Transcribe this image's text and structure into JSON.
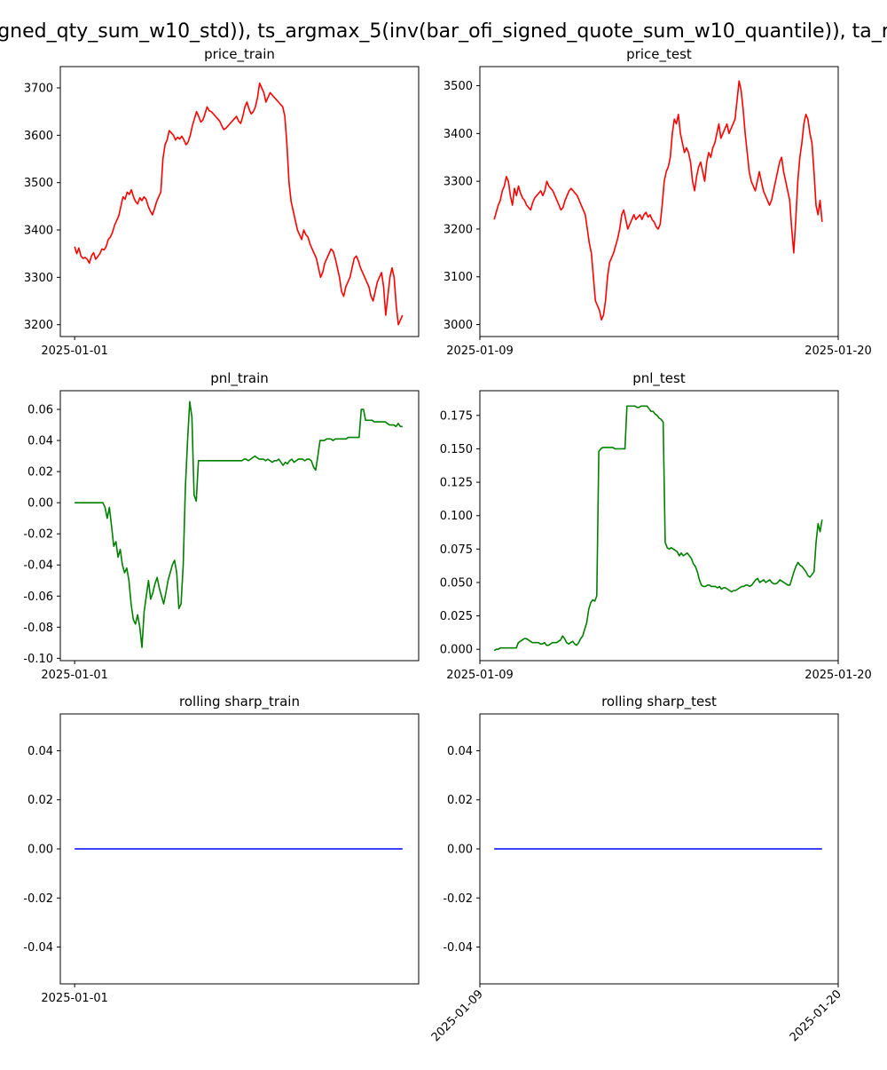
{
  "suptitle": "gned_qty_sum_w10_std)), ts_argmax_5(inv(bar_ofi_signed_quote_sum_w10_quantile)), ta_r",
  "colors": {
    "price": "#ff0000",
    "pnl": "#008000",
    "sharp": "#0000ff"
  },
  "chart_data": [
    {
      "id": "price_train",
      "type": "line",
      "title": "price_train",
      "xlabel": "",
      "ylabel": "",
      "x_ticks": [
        "2025-01-01"
      ],
      "y_ticks": [
        3200,
        3300,
        3400,
        3500,
        3600,
        3700
      ],
      "ylim": [
        3175,
        3745
      ],
      "grid": false,
      "series": [
        {
          "color": "price",
          "values": [
            3365,
            3350,
            3362,
            3345,
            3340,
            3342,
            3338,
            3330,
            3345,
            3352,
            3338,
            3344,
            3350,
            3360,
            3358,
            3365,
            3380,
            3385,
            3395,
            3410,
            3420,
            3430,
            3450,
            3470,
            3465,
            3480,
            3475,
            3485,
            3470,
            3460,
            3455,
            3468,
            3462,
            3470,
            3465,
            3450,
            3440,
            3432,
            3445,
            3460,
            3470,
            3480,
            3550,
            3580,
            3590,
            3610,
            3605,
            3600,
            3590,
            3596,
            3592,
            3598,
            3590,
            3580,
            3586,
            3600,
            3620,
            3635,
            3650,
            3640,
            3628,
            3632,
            3645,
            3660,
            3652,
            3650,
            3645,
            3640,
            3635,
            3630,
            3620,
            3612,
            3615,
            3620,
            3625,
            3630,
            3635,
            3640,
            3630,
            3625,
            3640,
            3660,
            3670,
            3655,
            3645,
            3650,
            3660,
            3680,
            3710,
            3700,
            3690,
            3670,
            3680,
            3690,
            3685,
            3680,
            3675,
            3670,
            3665,
            3660,
            3640,
            3580,
            3500,
            3460,
            3440,
            3420,
            3400,
            3390,
            3380,
            3400,
            3390,
            3385,
            3370,
            3360,
            3350,
            3340,
            3320,
            3300,
            3310,
            3330,
            3340,
            3350,
            3360,
            3355,
            3340,
            3320,
            3300,
            3270,
            3260,
            3280,
            3290,
            3300,
            3320,
            3340,
            3345,
            3335,
            3320,
            3310,
            3300,
            3290,
            3280,
            3260,
            3250,
            3270,
            3290,
            3300,
            3310,
            3280,
            3220,
            3260,
            3300,
            3320,
            3300,
            3240,
            3200,
            3210,
            3220
          ]
        }
      ]
    },
    {
      "id": "price_test",
      "type": "line",
      "title": "price_test",
      "xlabel": "",
      "ylabel": "",
      "x_ticks": [
        "2025-01-09",
        "2025-01-20"
      ],
      "y_ticks": [
        3000,
        3100,
        3200,
        3300,
        3400,
        3500
      ],
      "ylim": [
        2975,
        3540
      ],
      "grid": false,
      "series": [
        {
          "color": "price",
          "values": [
            3220,
            3235,
            3250,
            3260,
            3280,
            3290,
            3310,
            3300,
            3270,
            3250,
            3285,
            3270,
            3290,
            3275,
            3265,
            3260,
            3250,
            3245,
            3240,
            3255,
            3265,
            3270,
            3275,
            3280,
            3270,
            3280,
            3300,
            3290,
            3285,
            3280,
            3270,
            3260,
            3250,
            3240,
            3245,
            3260,
            3270,
            3280,
            3285,
            3280,
            3275,
            3270,
            3260,
            3250,
            3240,
            3230,
            3200,
            3170,
            3150,
            3100,
            3050,
            3040,
            3030,
            3010,
            3020,
            3050,
            3100,
            3130,
            3140,
            3150,
            3165,
            3180,
            3200,
            3230,
            3240,
            3220,
            3200,
            3210,
            3220,
            3230,
            3220,
            3225,
            3230,
            3220,
            3230,
            3235,
            3225,
            3230,
            3220,
            3215,
            3205,
            3200,
            3210,
            3250,
            3300,
            3320,
            3330,
            3350,
            3400,
            3430,
            3420,
            3440,
            3400,
            3380,
            3360,
            3370,
            3360,
            3340,
            3300,
            3280,
            3310,
            3330,
            3340,
            3320,
            3300,
            3340,
            3360,
            3350,
            3370,
            3380,
            3400,
            3420,
            3390,
            3400,
            3410,
            3420,
            3400,
            3410,
            3420,
            3430,
            3470,
            3510,
            3490,
            3450,
            3400,
            3360,
            3320,
            3300,
            3290,
            3280,
            3300,
            3320,
            3300,
            3280,
            3270,
            3260,
            3250,
            3260,
            3280,
            3300,
            3320,
            3340,
            3350,
            3320,
            3300,
            3280,
            3260,
            3200,
            3150,
            3220,
            3300,
            3350,
            3380,
            3420,
            3440,
            3430,
            3400,
            3380,
            3320,
            3250,
            3230,
            3260,
            3215
          ]
        }
      ]
    },
    {
      "id": "pnl_train",
      "type": "line",
      "title": "pnl_train",
      "xlabel": "",
      "ylabel": "",
      "x_ticks": [
        "2025-01-01"
      ],
      "y_ticks": [
        -0.1,
        -0.08,
        -0.06,
        -0.04,
        -0.02,
        0.0,
        0.02,
        0.04,
        0.06
      ],
      "ylim": [
        -0.1015,
        0.072
      ],
      "grid": false,
      "series": [
        {
          "color": "pnl",
          "values": [
            0,
            0,
            0,
            0,
            0,
            0,
            0,
            0,
            0,
            0,
            0,
            0,
            0,
            0,
            -0.003,
            -0.01,
            -0.003,
            -0.015,
            -0.028,
            -0.025,
            -0.035,
            -0.03,
            -0.04,
            -0.045,
            -0.042,
            -0.05,
            -0.065,
            -0.075,
            -0.078,
            -0.072,
            -0.08,
            -0.093,
            -0.07,
            -0.06,
            -0.05,
            -0.062,
            -0.058,
            -0.052,
            -0.048,
            -0.055,
            -0.06,
            -0.065,
            -0.058,
            -0.05,
            -0.045,
            -0.04,
            -0.037,
            -0.045,
            -0.068,
            -0.065,
            -0.04,
            0.01,
            0.04,
            0.065,
            0.055,
            0.005,
            0.001,
            0.027,
            0.027,
            0.027,
            0.027,
            0.027,
            0.027,
            0.027,
            0.027,
            0.027,
            0.027,
            0.027,
            0.027,
            0.027,
            0.027,
            0.027,
            0.027,
            0.027,
            0.027,
            0.027,
            0.027,
            0.027,
            0.028,
            0.028,
            0.027,
            0.028,
            0.029,
            0.03,
            0.029,
            0.028,
            0.028,
            0.028,
            0.027,
            0.028,
            0.027,
            0.026,
            0.027,
            0.027,
            0.028,
            0.026,
            0.024,
            0.026,
            0.025,
            0.027,
            0.028,
            0.026,
            0.027,
            0.028,
            0.028,
            0.028,
            0.027,
            0.028,
            0.028,
            0.027,
            0.023,
            0.021,
            0.03,
            0.04,
            0.04,
            0.04,
            0.041,
            0.041,
            0.041,
            0.04,
            0.041,
            0.041,
            0.041,
            0.041,
            0.041,
            0.041,
            0.042,
            0.042,
            0.042,
            0.042,
            0.042,
            0.042,
            0.06,
            0.06,
            0.053,
            0.053,
            0.053,
            0.053,
            0.052,
            0.052,
            0.052,
            0.052,
            0.052,
            0.052,
            0.051,
            0.05,
            0.05,
            0.05,
            0.049,
            0.051,
            0.049,
            0.049
          ]
        }
      ]
    },
    {
      "id": "pnl_test",
      "type": "line",
      "title": "pnl_test",
      "xlabel": "",
      "ylabel": "",
      "x_ticks": [
        "2025-01-09",
        "2025-01-20"
      ],
      "y_ticks": [
        0.0,
        0.025,
        0.05,
        0.075,
        0.1,
        0.125,
        0.15,
        0.175
      ],
      "ylim": [
        -0.0085,
        0.1935
      ],
      "grid": false,
      "series": [
        {
          "color": "pnl",
          "values": [
            -0.001,
            0,
            0,
            0.001,
            0.001,
            0.001,
            0.001,
            0.001,
            0.001,
            0.001,
            0.001,
            0.001,
            0.005,
            0.006,
            0.007,
            0.008,
            0.008,
            0.007,
            0.006,
            0.005,
            0.005,
            0.005,
            0.005,
            0.004,
            0.004,
            0.005,
            0.003,
            0.003,
            0.004,
            0.005,
            0.005,
            0.005,
            0.006,
            0.007,
            0.01,
            0.008,
            0.005,
            0.004,
            0.005,
            0.006,
            0.004,
            0.003,
            0.005,
            0.008,
            0.01,
            0.015,
            0.02,
            0.03,
            0.035,
            0.037,
            0.036,
            0.04,
            0.148,
            0.15,
            0.151,
            0.151,
            0.151,
            0.151,
            0.151,
            0.151,
            0.15,
            0.15,
            0.15,
            0.15,
            0.15,
            0.15,
            0.182,
            0.182,
            0.182,
            0.182,
            0.182,
            0.181,
            0.181,
            0.182,
            0.182,
            0.182,
            0.182,
            0.18,
            0.178,
            0.178,
            0.176,
            0.175,
            0.173,
            0.172,
            0.17,
            0.08,
            0.076,
            0.075,
            0.076,
            0.075,
            0.074,
            0.073,
            0.07,
            0.072,
            0.07,
            0.071,
            0.072,
            0.07,
            0.068,
            0.064,
            0.062,
            0.058,
            0.052,
            0.048,
            0.047,
            0.047,
            0.048,
            0.048,
            0.047,
            0.047,
            0.047,
            0.046,
            0.047,
            0.045,
            0.046,
            0.046,
            0.045,
            0.044,
            0.043,
            0.044,
            0.044,
            0.045,
            0.046,
            0.047,
            0.047,
            0.048,
            0.048,
            0.047,
            0.048,
            0.05,
            0.052,
            0.053,
            0.05,
            0.051,
            0.052,
            0.05,
            0.051,
            0.052,
            0.05,
            0.049,
            0.049,
            0.05,
            0.052,
            0.051,
            0.05,
            0.049,
            0.048,
            0.048,
            0.053,
            0.058,
            0.062,
            0.065,
            0.063,
            0.062,
            0.06,
            0.058,
            0.055,
            0.054,
            0.056,
            0.058,
            0.08,
            0.094,
            0.088,
            0.097
          ]
        }
      ]
    },
    {
      "id": "rolling_sharp_train",
      "type": "line",
      "title": "rolling sharp_train",
      "xlabel": "",
      "ylabel": "",
      "x_ticks": [
        "2025-01-01"
      ],
      "y_ticks": [
        -0.04,
        -0.02,
        0.0,
        0.02,
        0.04
      ],
      "ylim": [
        -0.055,
        0.055
      ],
      "grid": false,
      "series": [
        {
          "color": "sharp",
          "values": [
            0,
            0
          ]
        }
      ]
    },
    {
      "id": "rolling_sharp_test",
      "type": "line",
      "title": "rolling sharp_test",
      "xlabel": "",
      "ylabel": "",
      "x_ticks": [
        "2025-01-09",
        "2025-01-20"
      ],
      "y_ticks": [
        -0.04,
        -0.02,
        0.0,
        0.02,
        0.04
      ],
      "ylim": [
        -0.055,
        0.055
      ],
      "grid": false,
      "series": [
        {
          "color": "sharp",
          "values": [
            0,
            0
          ]
        }
      ]
    }
  ]
}
